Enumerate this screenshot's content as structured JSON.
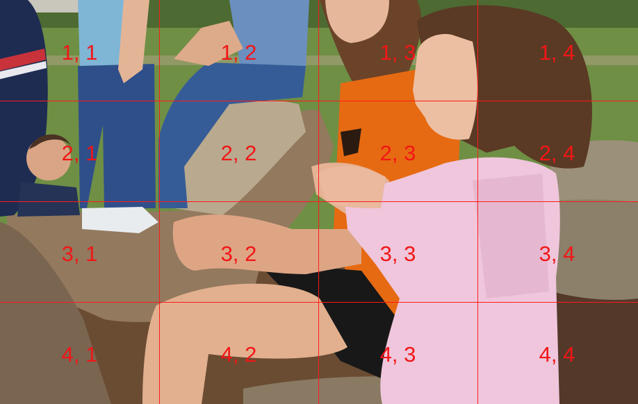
{
  "grid": {
    "rows": 4,
    "cols": 4,
    "line_color": "#ff1a1a",
    "label_color": "#f21616",
    "labels": [
      [
        "1, 1",
        "1, 2",
        "1, 3",
        "1, 4"
      ],
      [
        "2, 1",
        "2, 2",
        "2, 3",
        "2, 4"
      ],
      [
        "3, 1",
        "3, 2",
        "3, 3",
        "3, 4"
      ],
      [
        "4, 1",
        "4, 2",
        "4, 3",
        "4, 4"
      ]
    ]
  },
  "photo": {
    "subject": "children sitting on logs outdoors, girl in pink shirt clapping",
    "colors": {
      "grass": "#6f8f45",
      "log": "#8f7a60",
      "pink_shirt": "#efc6dc",
      "orange_shirt": "#e66a12",
      "denim": "#3a5f9a",
      "hair": "#5a3a24",
      "skin": "#e2b08f",
      "ground": "#6a4c33"
    }
  }
}
